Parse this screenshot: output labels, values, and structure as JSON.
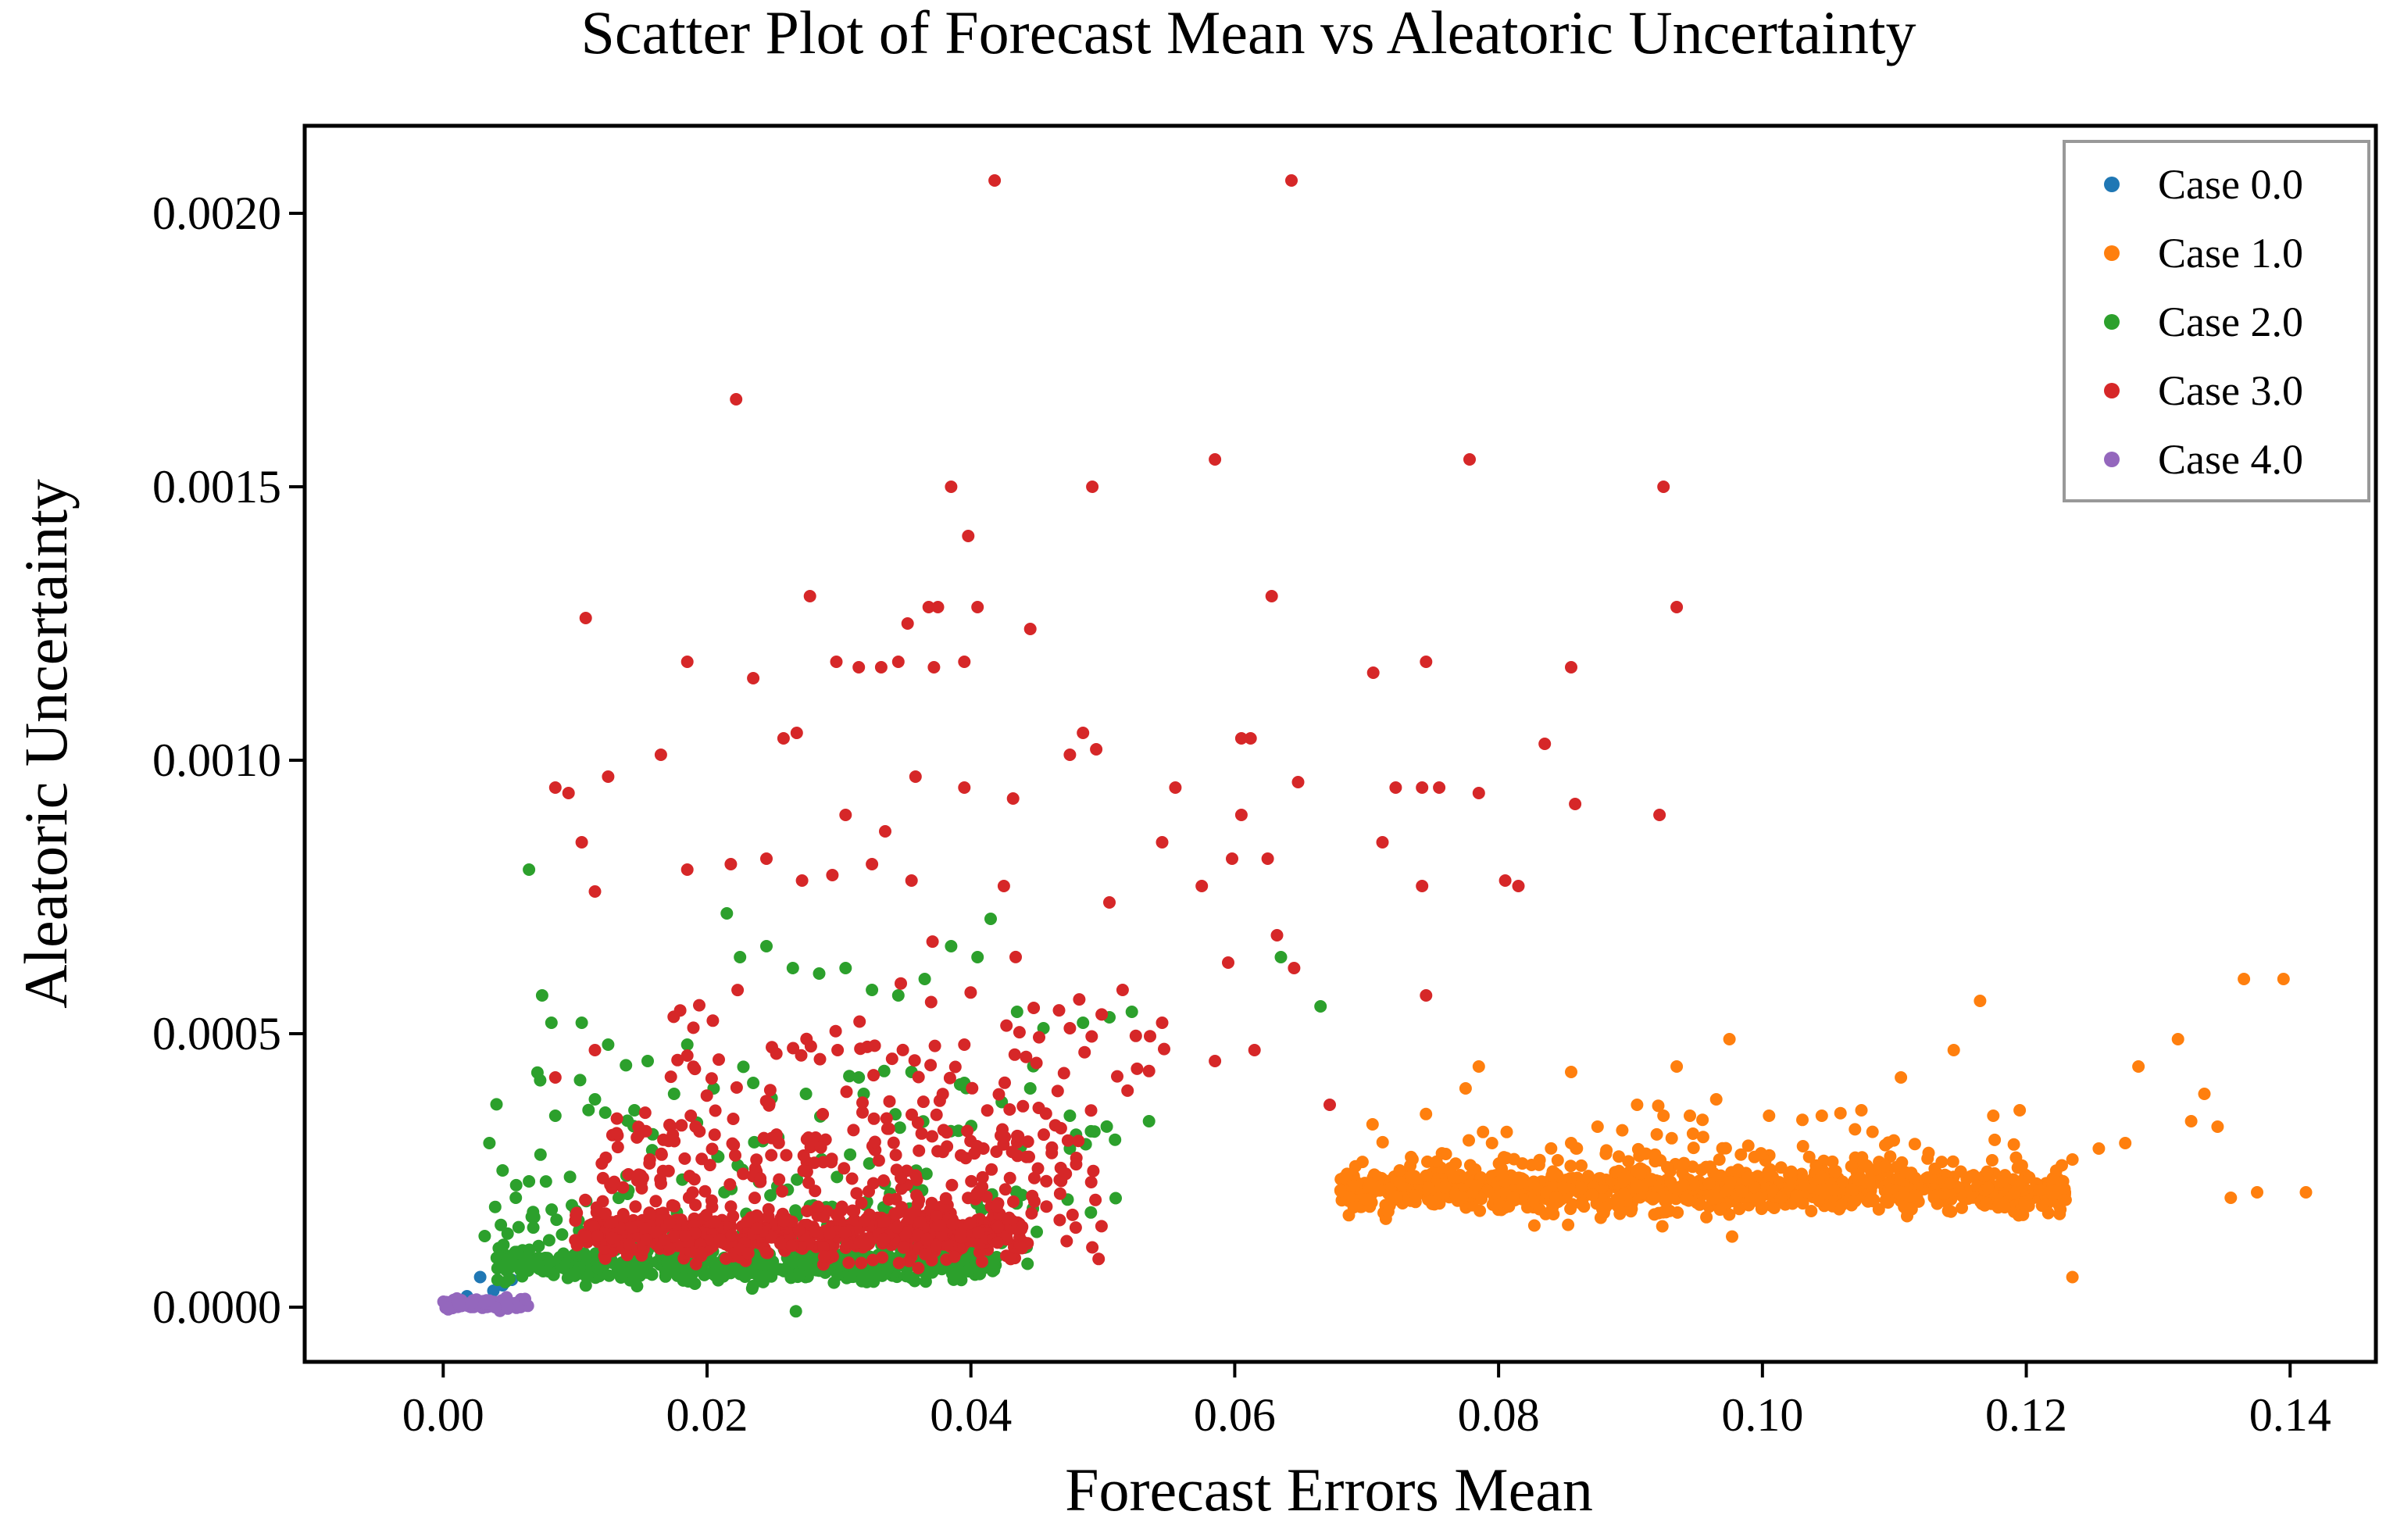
{
  "chart_data": {
    "type": "scatter",
    "title": "Scatter Plot of Forecast Mean vs Aleatoric Uncertainty",
    "xlabel": "Forecast Errors Mean",
    "ylabel": "Aleatoric Uncertainty",
    "xlim": [
      -0.0105,
      0.1465
    ],
    "ylim": [
      -0.0001,
      0.00216
    ],
    "xticks": [
      0.0,
      0.02,
      0.04,
      0.06,
      0.08,
      0.1,
      0.12,
      0.14
    ],
    "xtick_labels": [
      "0.00",
      "0.02",
      "0.04",
      "0.06",
      "0.08",
      "0.10",
      "0.12",
      "0.14"
    ],
    "yticks": [
      0.0,
      0.0005,
      0.001,
      0.0015,
      0.002
    ],
    "ytick_labels": [
      "0.0000",
      "0.0005",
      "0.0010",
      "0.0015",
      "0.0020"
    ],
    "grid": false,
    "legend": {
      "position": "top-right"
    },
    "series": [
      {
        "name": "Case 0.0",
        "color": "#1f77b4",
        "x": [
          0.0028,
          0.0045,
          0.0038,
          0.0018,
          0.0052
        ],
        "y": [
          5.5e-05,
          4e-05,
          3e-05,
          2e-05,
          5e-05
        ]
      },
      {
        "name": "Case 1.0",
        "color": "#ff7f0e",
        "x": [
          0.0685,
          0.0705,
          0.0725,
          0.076,
          0.0795,
          0.0825,
          0.0855,
          0.0875,
          0.0905,
          0.0925,
          0.0965,
          0.0975,
          0.1005,
          0.1045,
          0.1075,
          0.1105,
          0.1145,
          0.1165,
          0.1175,
          0.1195,
          0.1235,
          0.1255,
          0.1275,
          0.1285,
          0.1315,
          0.1325,
          0.1335,
          0.1345,
          0.1355,
          0.1365,
          0.1375,
          0.1395,
          0.1412,
          0.0935,
          0.0785,
          0.0945,
          0.0775,
          0.0855,
          0.1235
        ],
        "y": [
          0.00024,
          0.00022,
          0.00025,
          0.00028,
          0.0003,
          0.00026,
          0.0003,
          0.00033,
          0.00037,
          0.00035,
          0.00038,
          0.00049,
          0.00035,
          0.00035,
          0.00036,
          0.00042,
          0.00047,
          0.00056,
          0.00035,
          0.00036,
          0.00027,
          0.00029,
          0.0003,
          0.00044,
          0.00049,
          0.00034,
          0.00039,
          0.00033,
          0.0002,
          0.0006,
          0.00021,
          0.0006,
          0.00021,
          0.00044,
          0.00044,
          0.00035,
          0.0004,
          0.00043,
          5.5e-05
        ]
      },
      {
        "name": "Case 2.0",
        "color": "#2ca02c",
        "x": [
          0.0065,
          0.0075,
          0.0082,
          0.0105,
          0.0125,
          0.0155,
          0.0185,
          0.0215,
          0.0225,
          0.0245,
          0.0265,
          0.0285,
          0.0305,
          0.0325,
          0.0345,
          0.0365,
          0.0385,
          0.0405,
          0.0415,
          0.0435,
          0.0455,
          0.0485,
          0.0505,
          0.0522,
          0.0635,
          0.0665,
          0.0035,
          0.0045,
          0.0055,
          0.0065,
          0.0085,
          0.0115,
          0.0145,
          0.0175,
          0.0205,
          0.0235,
          0.0275,
          0.0315,
          0.0355,
          0.0395,
          0.0445,
          0.0475,
          0.0535,
          0.0475
        ],
        "y": [
          0.0008,
          0.00057,
          0.00052,
          0.00052,
          0.00048,
          0.00045,
          0.00048,
          0.00072,
          0.00064,
          0.00066,
          0.00062,
          0.00061,
          0.00062,
          0.00058,
          0.00057,
          0.0006,
          0.00066,
          0.00064,
          0.00071,
          0.00054,
          0.00051,
          0.00052,
          0.00053,
          0.00054,
          0.00064,
          0.00055,
          0.0003,
          0.00025,
          0.0002,
          0.00023,
          0.00035,
          0.00038,
          0.00036,
          0.00039,
          0.0004,
          0.00041,
          0.00039,
          0.00042,
          0.00043,
          0.00041,
          0.0004,
          0.00035,
          0.00034,
          0.00029
        ]
      },
      {
        "name": "Case 3.0",
        "color": "#d62728",
        "x": [
          0.0418,
          0.0643,
          0.0222,
          0.0385,
          0.0492,
          0.0585,
          0.0778,
          0.0925,
          0.0935,
          0.0398,
          0.0352,
          0.0368,
          0.0628,
          0.0108,
          0.0278,
          0.0298,
          0.0345,
          0.0315,
          0.0332,
          0.0372,
          0.0395,
          0.0445,
          0.0705,
          0.0745,
          0.0855,
          0.0185,
          0.0235,
          0.0405,
          0.0375,
          0.0165,
          0.0258,
          0.0268,
          0.0485,
          0.0495,
          0.0605,
          0.0475,
          0.0125,
          0.0095,
          0.0358,
          0.0395,
          0.0432,
          0.0555,
          0.0605,
          0.0755,
          0.0785,
          0.0858,
          0.0922,
          0.0085,
          0.0105,
          0.0115,
          0.0305,
          0.0335,
          0.0272,
          0.0218,
          0.0185,
          0.0245,
          0.0325,
          0.0295,
          0.0355,
          0.0425,
          0.0505,
          0.0545,
          0.0575,
          0.0598,
          0.0612,
          0.0625,
          0.0648,
          0.0632,
          0.0712,
          0.0742,
          0.0805,
          0.0815,
          0.0742,
          0.0835,
          0.0722,
          0.0615,
          0.0645,
          0.0672,
          0.0745,
          0.0585,
          0.0595,
          0.0515,
          0.0545,
          0.0475,
          0.0085,
          0.0115,
          0.0185,
          0.0395
        ],
        "y": [
          0.00206,
          0.00206,
          0.00166,
          0.0015,
          0.0015,
          0.00155,
          0.00155,
          0.0015,
          0.00128,
          0.00141,
          0.00125,
          0.00128,
          0.0013,
          0.00126,
          0.0013,
          0.00118,
          0.00118,
          0.00117,
          0.00117,
          0.00117,
          0.00118,
          0.00124,
          0.00116,
          0.00118,
          0.00117,
          0.00118,
          0.00115,
          0.00128,
          0.00128,
          0.00101,
          0.00104,
          0.00105,
          0.00105,
          0.00102,
          0.00104,
          0.00101,
          0.00097,
          0.00094,
          0.00097,
          0.00095,
          0.00093,
          0.00095,
          0.0009,
          0.00095,
          0.00094,
          0.00092,
          0.0009,
          0.00095,
          0.00085,
          0.00076,
          0.0009,
          0.00087,
          0.00078,
          0.00081,
          0.0008,
          0.00082,
          0.00081,
          0.00079,
          0.00078,
          0.00077,
          0.00074,
          0.00085,
          0.00077,
          0.00082,
          0.00104,
          0.00082,
          0.00096,
          0.00068,
          0.00085,
          0.00077,
          0.00078,
          0.00077,
          0.00095,
          0.00103,
          0.00095,
          0.00047,
          0.00062,
          0.00037,
          0.00057,
          0.00045,
          0.00063,
          0.00058,
          0.00052,
          0.00051,
          0.00042,
          0.00047,
          0.00046,
          0.00048
        ]
      },
      {
        "name": "Case 4.0",
        "color": "#9467bd",
        "x": [
          0.0003,
          0.0012,
          0.0022,
          0.0035,
          0.0048,
          0.0062
        ],
        "y": [
          0.0,
          5e-06,
          8e-06,
          1.2e-05,
          1.8e-05,
          1.5e-05
        ]
      }
    ]
  }
}
